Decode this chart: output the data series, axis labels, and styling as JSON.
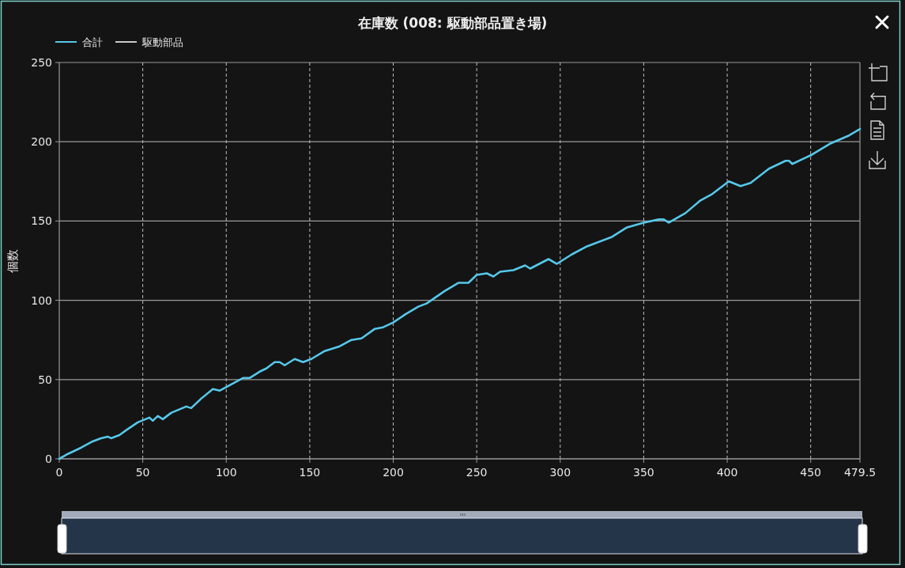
{
  "chart_data": {
    "type": "line",
    "title": "在庫数 (008: 駆動部品置き場)",
    "ylabel": "個数",
    "x": [
      0,
      5,
      13,
      20,
      25,
      29,
      31,
      36,
      40,
      47,
      54,
      56,
      59,
      62,
      67,
      76,
      79,
      85,
      92,
      96,
      103,
      110,
      114,
      120,
      124,
      129,
      132,
      135,
      141,
      146,
      151,
      159,
      168,
      175,
      181,
      189,
      194,
      200,
      207,
      215,
      220,
      231,
      239,
      245,
      250,
      256,
      260,
      264,
      272,
      279,
      282,
      293,
      298,
      307,
      316,
      331,
      340,
      350,
      359,
      362,
      365,
      375,
      384,
      391,
      401,
      408,
      414,
      425,
      435,
      437,
      439,
      451,
      462,
      473,
      479.5
    ],
    "series": [
      {
        "name": "合計",
        "color": "#56c8ea",
        "values": [
          0,
          3,
          7,
          11,
          13,
          14,
          13,
          15,
          18,
          23,
          26,
          24,
          27,
          25,
          29,
          33,
          32,
          38,
          44,
          43,
          47,
          51,
          51,
          55,
          57,
          61,
          61,
          59,
          63,
          61,
          63,
          68,
          71,
          75,
          76,
          82,
          83,
          86,
          91,
          96,
          98,
          106,
          111,
          111,
          116,
          117,
          115,
          118,
          119,
          122,
          120,
          126,
          123,
          129,
          134,
          140,
          146,
          149,
          151,
          151,
          149,
          155,
          163,
          167,
          175,
          172,
          174,
          183,
          188,
          188,
          186,
          192,
          199,
          204,
          208
        ]
      },
      {
        "name": "駆動部品",
        "color": "#c8c8c8",
        "values": [
          null,
          null,
          null,
          null,
          null,
          null,
          null,
          null,
          null,
          null,
          null,
          null,
          null,
          null,
          null,
          null,
          null,
          null,
          null,
          null,
          null,
          null,
          null,
          null,
          null,
          null,
          null,
          null,
          null,
          null,
          null,
          null,
          null,
          null,
          null,
          null,
          null,
          null,
          null,
          null,
          null,
          null,
          null,
          null,
          null,
          null,
          null,
          null,
          null,
          null,
          null,
          null,
          null,
          null,
          null,
          null,
          null,
          null,
          null,
          null,
          null,
          null,
          null,
          null,
          null,
          null,
          null,
          null,
          null,
          null,
          null,
          null,
          null,
          null,
          null
        ]
      }
    ],
    "xlim": [
      0,
      479.5
    ],
    "xticks": [
      0,
      50,
      100,
      150,
      200,
      250,
      300,
      350,
      400,
      450,
      479.5
    ],
    "ylim": [
      0,
      250
    ],
    "yticks": [
      0,
      50,
      100,
      150,
      200,
      250
    ],
    "grid": true,
    "legend": "top left"
  }
}
